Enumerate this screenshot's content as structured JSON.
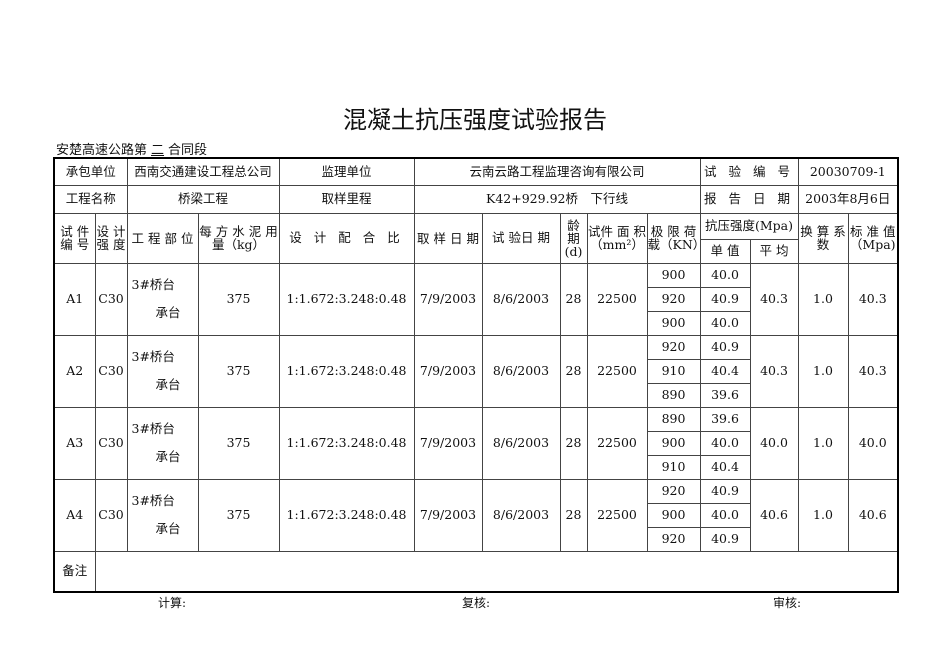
{
  "title": "混凝土抗压强度试验报告",
  "subtitle_prefix": "安楚高速公路第",
  "subtitle_section": "二",
  "subtitle_suffix": "合同段",
  "info": {
    "contractor_label": "承包单位",
    "contractor": "西南交通建设工程总公司",
    "supervisor_label": "监理单位",
    "supervisor": "云南云路工程监理咨询有限公司",
    "test_no_label": "试 验 编 号",
    "test_no": "20030709-1",
    "project_label": "工程名称",
    "project": "桥梁工程",
    "mileage_label": "取样里程",
    "mileage": "K42+929.92桥　下行线",
    "report_date_label": "报 告 日 期",
    "report_date": "2003年8月6日"
  },
  "headers": {
    "specimen_no": "试 件 编 号",
    "design_strength": "设 计 强 度",
    "part": "工 程 部 位",
    "cement": "每 方 水 泥 用 量（kg）",
    "mix": "设 计 配 合 比",
    "sample_date": "取 样 日 期",
    "test_date": "试 验日 期",
    "age": "龄 期 (d)",
    "area": "试件 面 积（mm²）",
    "load": "极 限 荷 载（KN）",
    "strength": "抗压强度(Mpa)",
    "single": "单 值",
    "avg": "平 均",
    "factor": "换 算 系 数",
    "std": "标 准 值 （Mpa)"
  },
  "rows": [
    {
      "id": "A1",
      "grade": "C30",
      "part1": "3#桥台",
      "part2": "承台",
      "cement": "375",
      "mix": "1:1.672:3.248:0.48",
      "sample_date": "7/9/2003",
      "test_date": "8/6/2003",
      "age": "28",
      "area": "22500",
      "loads": [
        "900",
        "920",
        "900"
      ],
      "singles": [
        "40.0",
        "40.9",
        "40.0"
      ],
      "avg": "40.3",
      "factor": "1.0",
      "std": "40.3"
    },
    {
      "id": "A2",
      "grade": "C30",
      "part1": "3#桥台",
      "part2": "承台",
      "cement": "375",
      "mix": "1:1.672:3.248:0.48",
      "sample_date": "7/9/2003",
      "test_date": "8/6/2003",
      "age": "28",
      "area": "22500",
      "loads": [
        "920",
        "910",
        "890"
      ],
      "singles": [
        "40.9",
        "40.4",
        "39.6"
      ],
      "avg": "40.3",
      "factor": "1.0",
      "std": "40.3"
    },
    {
      "id": "A3",
      "grade": "C30",
      "part1": "3#桥台",
      "part2": "承台",
      "cement": "375",
      "mix": "1:1.672:3.248:0.48",
      "sample_date": "7/9/2003",
      "test_date": "8/6/2003",
      "age": "28",
      "area": "22500",
      "loads": [
        "890",
        "900",
        "910"
      ],
      "singles": [
        "39.6",
        "40.0",
        "40.4"
      ],
      "avg": "40.0",
      "factor": "1.0",
      "std": "40.0"
    },
    {
      "id": "A4",
      "grade": "C30",
      "part1": "3#桥台",
      "part2": "承台",
      "cement": "375",
      "mix": "1:1.672:3.248:0.48",
      "sample_date": "7/9/2003",
      "test_date": "8/6/2003",
      "age": "28",
      "area": "22500",
      "loads": [
        "920",
        "900",
        "920"
      ],
      "singles": [
        "40.9",
        "40.0",
        "40.9"
      ],
      "avg": "40.6",
      "factor": "1.0",
      "std": "40.6"
    }
  ],
  "remarks_label": "备注",
  "footer": {
    "calc": "计算:",
    "review": "复核:",
    "audit": "审核:"
  }
}
